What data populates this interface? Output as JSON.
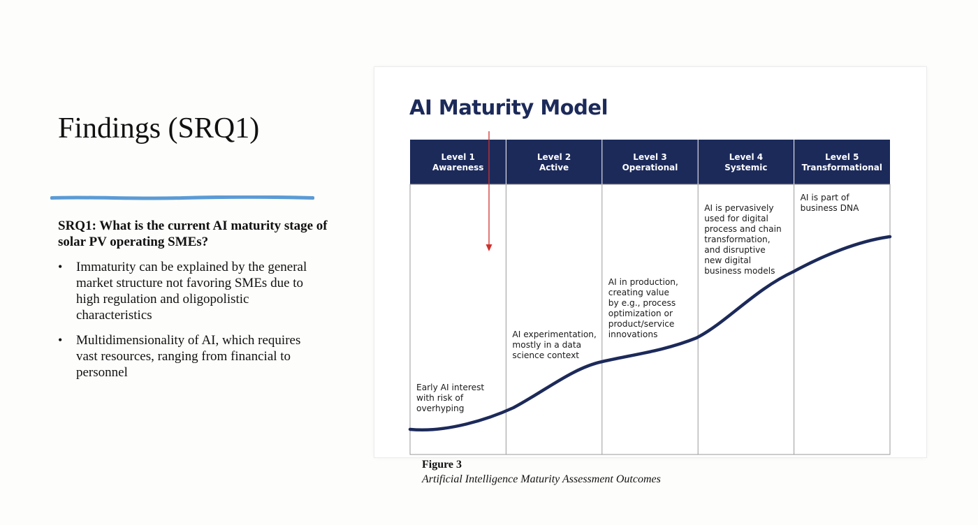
{
  "slide": {
    "title": "Findings (SRQ1)",
    "question": "SRQ1: What is the current AI maturity stage of solar PV operating SMEs?",
    "bullets": [
      "Immaturity can be explained by the general market structure not favoring SMEs due to high regulation and oligopolistic characteristics",
      "Multidimensionality of AI, which requires vast resources, ranging from financial to personnel"
    ],
    "bullet_marker": "•"
  },
  "figure": {
    "heading": "AI Maturity Model",
    "levels": [
      {
        "num": "Level 1",
        "name": "Awareness",
        "desc": [
          "Early AI interest",
          "with risk of",
          "overhyping"
        ]
      },
      {
        "num": "Level 2",
        "name": "Active",
        "desc": [
          "AI experimentation,",
          "mostly in a data",
          "science context"
        ]
      },
      {
        "num": "Level 3",
        "name": "Operational",
        "desc": [
          "AI in production,",
          "creating value",
          "by e.g., process",
          "optimization or",
          "product/service",
          "innovations"
        ]
      },
      {
        "num": "Level 4",
        "name": "Systemic",
        "desc": [
          "AI is pervasively",
          "used for digital",
          "process and chain",
          "transformation,",
          "and disruptive",
          "new digital",
          "business models"
        ]
      },
      {
        "num": "Level 5",
        "name": "Transformational",
        "desc": [
          "AI is part of",
          "business DNA"
        ]
      }
    ],
    "caption_label": "Figure 3",
    "caption_text": "Artificial Intelligence Maturity Assessment Outcomes"
  },
  "colors": {
    "navy": "#1c2a5a",
    "rule_blue": "#5b9bd5",
    "arrow_red": "#d0312d",
    "grid": "#9a9a9a"
  }
}
